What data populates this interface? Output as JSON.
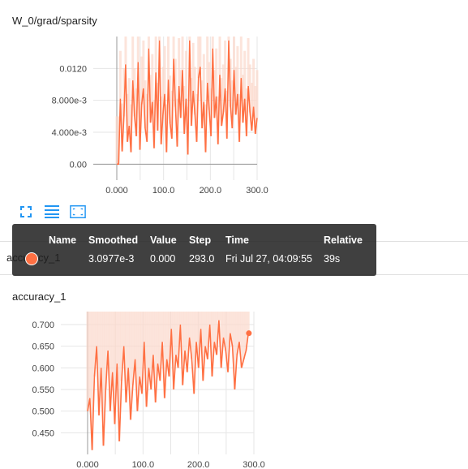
{
  "colors": {
    "series": "#ff7043",
    "series_faint": "#fcd9cc",
    "tooltip_bg": "#1e1e1e"
  },
  "cards": [
    {
      "title": "W_0/grad/sparsity"
    },
    {
      "title": "accuracy_1"
    }
  ],
  "obscured_title": "accuracy_1",
  "toolbar": {
    "fullscreen_icon": "expand-icon",
    "data_icon": "list-icon",
    "fit_icon": "fit-domain-icon"
  },
  "tooltip": {
    "headers": {
      "name": "Name",
      "smoothed": "Smoothed",
      "value": "Value",
      "step": "Step",
      "time": "Time",
      "relative": "Relative"
    },
    "row": {
      "name": "",
      "smoothed": "3.0977e-3",
      "value": "0.000",
      "step": "293.0",
      "time": "Fri Jul 27, 04:09:55",
      "relative": "39s"
    }
  },
  "chart_data": [
    {
      "type": "line",
      "title": "W_0/grad/sparsity",
      "xlim": [
        0,
        300
      ],
      "ylim": [
        -0.002,
        0.016
      ],
      "x_ticks": [
        "0.000",
        "100.0",
        "200.0",
        "300.0"
      ],
      "y_ticks": [
        "0.00",
        "4.000e-3",
        "8.000e-3",
        "0.0120"
      ],
      "x_tick_values": [
        0,
        100,
        200,
        300
      ],
      "y_tick_values": [
        0,
        0.004,
        0.008,
        0.012
      ],
      "series": [
        {
          "values": [
            0.0,
            0.0,
            0.0082,
            0.0016,
            0.006,
            0.0125,
            0.0028,
            0.0048,
            0.0015,
            0.0105,
            0.006,
            0.0035,
            0.0128,
            0.0018,
            0.0075,
            0.0095,
            0.0045,
            0.0028,
            0.0145,
            0.0052,
            0.0078,
            0.002,
            0.0115,
            0.0042,
            0.0155,
            0.0025,
            0.0062,
            0.0088,
            0.0015,
            0.0106,
            0.0051,
            0.0032,
            0.0132,
            0.0072,
            0.0022,
            0.0098,
            0.0058,
            0.0118,
            0.0038,
            0.0082,
            0.0012,
            0.0155,
            0.0048,
            0.0092,
            0.0062,
            0.0028,
            0.0108,
            0.0122,
            0.0045,
            0.0078,
            0.0015,
            0.0102,
            0.0068,
            0.0035,
            0.0145,
            0.0058,
            0.0085,
            0.0025,
            0.0112,
            0.0048,
            0.0065,
            0.0095,
            0.0032,
            0.0155,
            0.0072,
            0.0045,
            0.0118,
            0.0062,
            0.0088,
            0.0028,
            0.0108,
            0.0052,
            0.0082,
            0.0035,
            0.0098,
            0.0065,
            0.0042,
            0.0072,
            0.0038,
            0.0058
          ]
        }
      ]
    },
    {
      "type": "line",
      "title": "accuracy_1",
      "xlim": [
        0,
        300
      ],
      "ylim": [
        0.4,
        0.73
      ],
      "x_ticks": [
        "0.000",
        "100.0",
        "200.0",
        "300.0"
      ],
      "y_ticks": [
        "0.450",
        "0.500",
        "0.550",
        "0.600",
        "0.650",
        "0.700"
      ],
      "x_tick_values": [
        0,
        100,
        200,
        300
      ],
      "y_tick_values": [
        0.45,
        0.5,
        0.55,
        0.6,
        0.65,
        0.7
      ],
      "series": [
        {
          "values": [
            0.5,
            0.53,
            0.41,
            0.58,
            0.65,
            0.49,
            0.6,
            0.42,
            0.55,
            0.64,
            0.5,
            0.59,
            0.47,
            0.61,
            0.43,
            0.57,
            0.65,
            0.52,
            0.6,
            0.48,
            0.56,
            0.62,
            0.5,
            0.58,
            0.54,
            0.66,
            0.51,
            0.6,
            0.55,
            0.63,
            0.52,
            0.61,
            0.57,
            0.66,
            0.53,
            0.62,
            0.58,
            0.69,
            0.55,
            0.63,
            0.6,
            0.7,
            0.56,
            0.64,
            0.59,
            0.67,
            0.62,
            0.54,
            0.66,
            0.6,
            0.69,
            0.57,
            0.65,
            0.62,
            0.7,
            0.58,
            0.66,
            0.63,
            0.71,
            0.6,
            0.67,
            0.64,
            0.59,
            0.68,
            0.65,
            0.55,
            0.63,
            0.66,
            0.6,
            0.62,
            0.64,
            0.68
          ]
        },
        {
          "values": [
            0.68
          ]
        }
      ]
    }
  ]
}
